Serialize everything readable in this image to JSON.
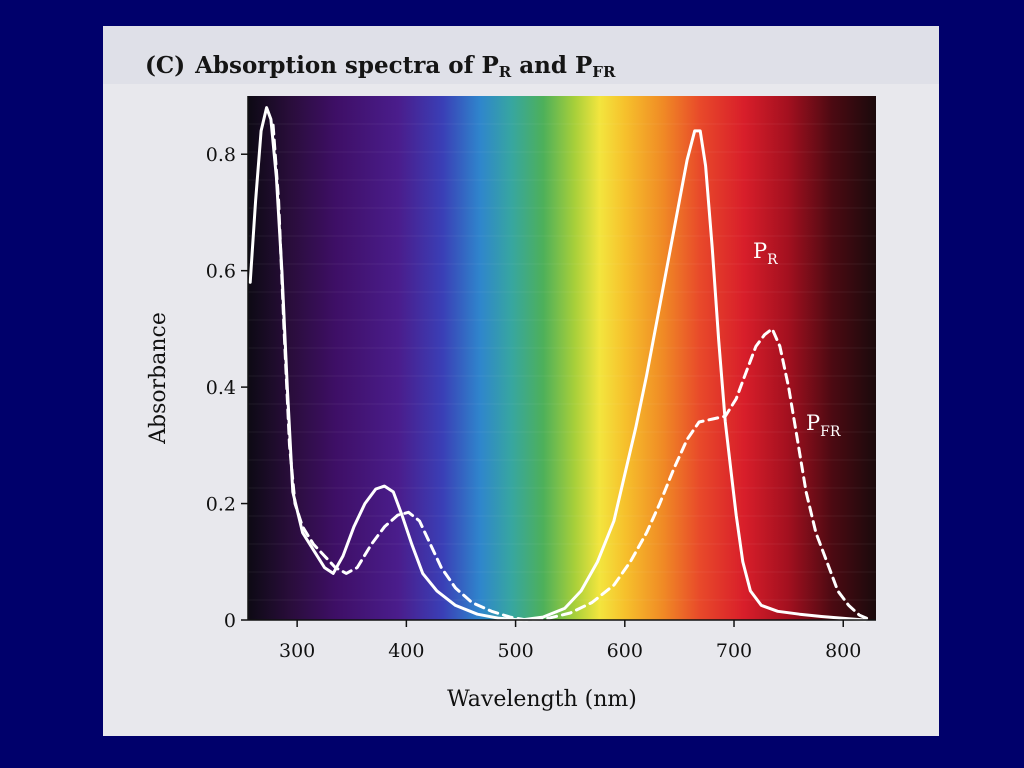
{
  "chart_data": {
    "type": "line",
    "panel_label": "(C)",
    "title": "Absorption spectra of P_R and P_FR",
    "title_parts": {
      "prefix": "Absorption spectra of P",
      "sub1": "R",
      "middle": " and P",
      "sub2": "FR"
    },
    "xlabel": "Wavelength (nm)",
    "ylabel": "Absorbance",
    "xlim": [
      255,
      830
    ],
    "ylim": [
      0,
      0.9
    ],
    "x_ticks": [
      300,
      400,
      500,
      600,
      700,
      800
    ],
    "y_ticks": [
      0,
      0.2,
      0.4,
      0.6,
      0.8
    ],
    "x_tick_labels": [
      "300",
      "400",
      "500",
      "600",
      "700",
      "800"
    ],
    "y_tick_labels": [
      "0",
      "0.2",
      "0.4",
      "0.6",
      "0.8"
    ],
    "grid": false,
    "background": "visible spectrum gradient (violet to red)",
    "series": [
      {
        "name": "P_R",
        "label_main": "P",
        "label_sub": "R",
        "style": "solid",
        "color": "#ffffff",
        "points": [
          [
            257,
            0.58
          ],
          [
            262,
            0.72
          ],
          [
            267,
            0.84
          ],
          [
            272,
            0.88
          ],
          [
            276,
            0.86
          ],
          [
            281,
            0.76
          ],
          [
            286,
            0.6
          ],
          [
            291,
            0.4
          ],
          [
            296,
            0.22
          ],
          [
            305,
            0.15
          ],
          [
            315,
            0.12
          ],
          [
            325,
            0.09
          ],
          [
            333,
            0.08
          ],
          [
            342,
            0.11
          ],
          [
            352,
            0.16
          ],
          [
            362,
            0.2
          ],
          [
            372,
            0.225
          ],
          [
            380,
            0.23
          ],
          [
            388,
            0.22
          ],
          [
            396,
            0.18
          ],
          [
            405,
            0.13
          ],
          [
            415,
            0.08
          ],
          [
            428,
            0.05
          ],
          [
            445,
            0.025
          ],
          [
            465,
            0.01
          ],
          [
            485,
            0.003
          ],
          [
            505,
            0.0
          ],
          [
            525,
            0.005
          ],
          [
            545,
            0.02
          ],
          [
            560,
            0.05
          ],
          [
            575,
            0.1
          ],
          [
            590,
            0.17
          ],
          [
            600,
            0.25
          ],
          [
            610,
            0.33
          ],
          [
            620,
            0.42
          ],
          [
            630,
            0.52
          ],
          [
            640,
            0.62
          ],
          [
            650,
            0.72
          ],
          [
            657,
            0.79
          ],
          [
            664,
            0.84
          ],
          [
            669,
            0.84
          ],
          [
            674,
            0.78
          ],
          [
            680,
            0.64
          ],
          [
            686,
            0.48
          ],
          [
            692,
            0.34
          ],
          [
            697,
            0.26
          ],
          [
            702,
            0.18
          ],
          [
            708,
            0.1
          ],
          [
            715,
            0.05
          ],
          [
            725,
            0.025
          ],
          [
            740,
            0.015
          ],
          [
            760,
            0.01
          ],
          [
            780,
            0.006
          ],
          [
            805,
            0.002
          ],
          [
            820,
            0.0
          ]
        ]
      },
      {
        "name": "P_FR",
        "label_main": "P",
        "label_sub": "FR",
        "style": "dashed",
        "color": "#ffffff",
        "points": [
          [
            278,
            0.85
          ],
          [
            283,
            0.72
          ],
          [
            288,
            0.5
          ],
          [
            293,
            0.3
          ],
          [
            298,
            0.2
          ],
          [
            305,
            0.16
          ],
          [
            315,
            0.13
          ],
          [
            325,
            0.11
          ],
          [
            335,
            0.09
          ],
          [
            345,
            0.08
          ],
          [
            355,
            0.09
          ],
          [
            368,
            0.13
          ],
          [
            380,
            0.16
          ],
          [
            392,
            0.18
          ],
          [
            402,
            0.185
          ],
          [
            412,
            0.17
          ],
          [
            422,
            0.13
          ],
          [
            432,
            0.09
          ],
          [
            445,
            0.055
          ],
          [
            460,
            0.03
          ],
          [
            478,
            0.015
          ],
          [
            495,
            0.005
          ],
          [
            510,
            0.0
          ],
          [
            530,
            0.003
          ],
          [
            550,
            0.012
          ],
          [
            570,
            0.03
          ],
          [
            590,
            0.06
          ],
          [
            605,
            0.1
          ],
          [
            620,
            0.15
          ],
          [
            632,
            0.2
          ],
          [
            645,
            0.26
          ],
          [
            657,
            0.31
          ],
          [
            668,
            0.34
          ],
          [
            680,
            0.345
          ],
          [
            692,
            0.35
          ],
          [
            702,
            0.38
          ],
          [
            712,
            0.43
          ],
          [
            720,
            0.47
          ],
          [
            728,
            0.49
          ],
          [
            735,
            0.5
          ],
          [
            742,
            0.47
          ],
          [
            750,
            0.4
          ],
          [
            758,
            0.31
          ],
          [
            766,
            0.22
          ],
          [
            775,
            0.15
          ],
          [
            785,
            0.1
          ],
          [
            795,
            0.05
          ],
          [
            805,
            0.025
          ],
          [
            815,
            0.008
          ],
          [
            825,
            0.0
          ]
        ]
      }
    ]
  },
  "colors": {
    "slide_background": "#00006b",
    "page_background": "#e8e8ed",
    "curve_color": "#ffffff"
  }
}
